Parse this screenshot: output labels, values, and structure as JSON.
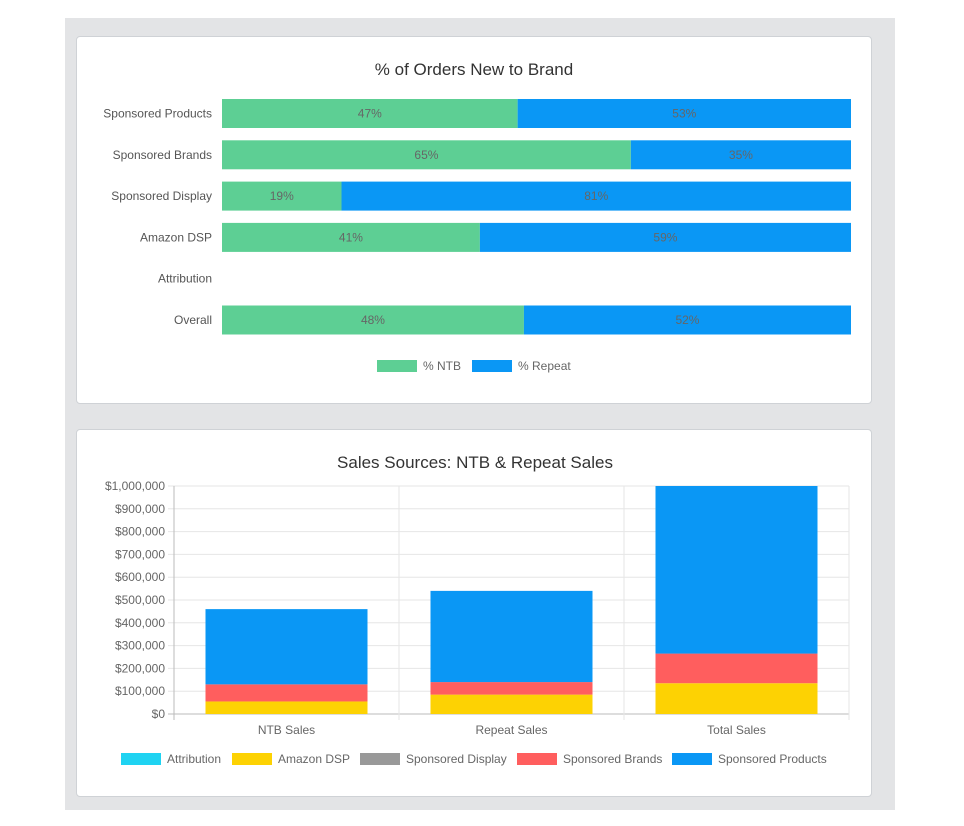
{
  "colors": {
    "ntb": "#5dcf94",
    "repeat": "#0a97f5",
    "attribution": "#1fd3f2",
    "amazon_dsp": "#fdd203",
    "sponsored_display": "#999999",
    "sponsored_brands": "#ff5e5e",
    "sponsored_products": "#0a97f5"
  },
  "chart_data": [
    {
      "type": "bar",
      "orientation": "horizontal",
      "stacked": true,
      "title": "% of Orders New to Brand",
      "categories": [
        "Sponsored Products",
        "Sponsored Brands",
        "Sponsored Display",
        "Amazon DSP",
        "Attribution",
        "Overall"
      ],
      "series": [
        {
          "name": "% NTB",
          "values": [
            47,
            65,
            19,
            41,
            null,
            48
          ],
          "labels": [
            "47%",
            "65%",
            "19%",
            "41%",
            "",
            "48%"
          ]
        },
        {
          "name": "% Repeat",
          "values": [
            53,
            35,
            81,
            59,
            null,
            52
          ],
          "labels": [
            "53%",
            "35%",
            "81%",
            "59%",
            "",
            "52%"
          ]
        }
      ],
      "xlim": [
        0,
        100
      ],
      "legend": "bottom"
    },
    {
      "type": "bar",
      "stacked": true,
      "title": "Sales Sources: NTB & Repeat Sales",
      "categories": [
        "NTB Sales",
        "Repeat Sales",
        "Total Sales"
      ],
      "series": [
        {
          "name": "Attribution",
          "values": [
            0,
            0,
            0
          ]
        },
        {
          "name": "Amazon DSP",
          "values": [
            55000,
            85000,
            135000
          ]
        },
        {
          "name": "Sponsored Display",
          "values": [
            0,
            0,
            0
          ]
        },
        {
          "name": "Sponsored Brands",
          "values": [
            75000,
            55000,
            130000
          ]
        },
        {
          "name": "Sponsored Products",
          "values": [
            330000,
            400000,
            735000
          ]
        }
      ],
      "ylim": [
        0,
        1000000
      ],
      "yticks": [
        "$0",
        "$100,000",
        "$200,000",
        "$300,000",
        "$400,000",
        "$500,000",
        "$600,000",
        "$700,000",
        "$800,000",
        "$900,000",
        "$1,000,000"
      ],
      "grid": true,
      "legend": "bottom"
    }
  ]
}
